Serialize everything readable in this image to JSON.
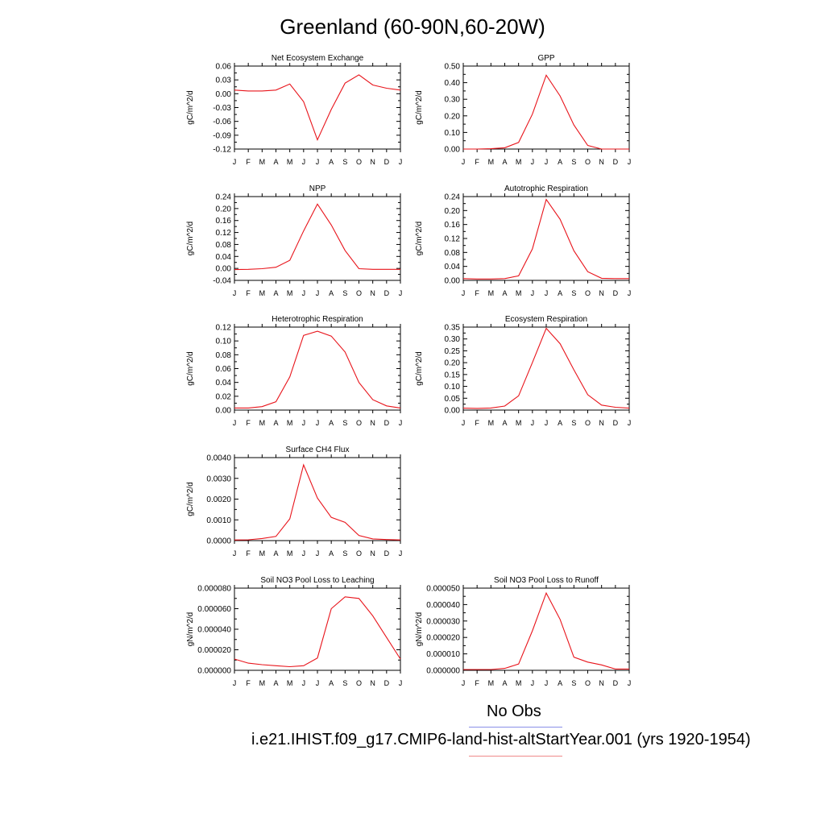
{
  "title": "Greenland (60-90N,60-20W)",
  "months": [
    "J",
    "F",
    "M",
    "A",
    "M",
    "J",
    "J",
    "A",
    "S",
    "O",
    "N",
    "D",
    "J"
  ],
  "line_color": "#e8141b",
  "legend": {
    "obs_label": "No Obs",
    "obs_color": "#8a8fe8",
    "model_label": "i.e21.IHIST.f09_g17.CMIP6-land-hist-altStartYear.001 (yrs 1920-1954)",
    "model_color": "#f08a8a"
  },
  "chart_data": [
    {
      "type": "line",
      "title": "Net Ecosystem Exchange",
      "ylabel": "gC/m^2/d",
      "ylim": [
        -0.12,
        0.06
      ],
      "yticks": [
        "-0.12",
        "-0.09",
        "-0.06",
        "-0.03",
        "0.00",
        "0.03",
        "0.06"
      ],
      "x": [
        "J",
        "F",
        "M",
        "A",
        "M",
        "J",
        "J",
        "A",
        "S",
        "O",
        "N",
        "D",
        "J"
      ],
      "values": [
        0.008,
        0.006,
        0.006,
        0.008,
        0.021,
        -0.017,
        -0.1,
        -0.034,
        0.023,
        0.041,
        0.019,
        0.012,
        0.008
      ]
    },
    {
      "type": "line",
      "title": "GPP",
      "ylabel": "gC/m^2/d",
      "ylim": [
        0.0,
        0.5
      ],
      "yticks": [
        "0.00",
        "0.10",
        "0.20",
        "0.30",
        "0.40",
        "0.50"
      ],
      "x": [
        "J",
        "F",
        "M",
        "A",
        "M",
        "J",
        "J",
        "A",
        "S",
        "O",
        "N",
        "D",
        "J"
      ],
      "values": [
        0.0,
        0.0,
        0.002,
        0.008,
        0.04,
        0.21,
        0.445,
        0.32,
        0.145,
        0.022,
        0.0,
        0.0,
        0.0
      ]
    },
    {
      "type": "line",
      "title": "NPP",
      "ylabel": "gC/m^2/d",
      "ylim": [
        -0.04,
        0.24
      ],
      "yticks": [
        "-0.04",
        "0.00",
        "0.04",
        "0.08",
        "0.12",
        "0.16",
        "0.20",
        "0.24"
      ],
      "x": [
        "J",
        "F",
        "M",
        "A",
        "M",
        "J",
        "J",
        "A",
        "S",
        "O",
        "N",
        "D",
        "J"
      ],
      "values": [
        -0.004,
        -0.003,
        -0.001,
        0.004,
        0.027,
        0.125,
        0.215,
        0.145,
        0.06,
        -0.001,
        -0.003,
        -0.003,
        -0.003
      ]
    },
    {
      "type": "line",
      "title": "Autotrophic Respiration",
      "ylabel": "gC/m^2/d",
      "ylim": [
        0.0,
        0.24
      ],
      "yticks": [
        "0.00",
        "0.04",
        "0.08",
        "0.12",
        "0.16",
        "0.20",
        "0.24"
      ],
      "x": [
        "J",
        "F",
        "M",
        "A",
        "M",
        "J",
        "J",
        "A",
        "S",
        "O",
        "N",
        "D",
        "J"
      ],
      "values": [
        0.005,
        0.004,
        0.004,
        0.005,
        0.013,
        0.09,
        0.232,
        0.175,
        0.085,
        0.025,
        0.006,
        0.005,
        0.005
      ]
    },
    {
      "type": "line",
      "title": "Heterotrophic Respiration",
      "ylabel": "gC/m^2/d",
      "ylim": [
        0.0,
        0.12
      ],
      "yticks": [
        "0.00",
        "0.02",
        "0.04",
        "0.06",
        "0.08",
        "0.10",
        "0.12"
      ],
      "x": [
        "J",
        "F",
        "M",
        "A",
        "M",
        "J",
        "J",
        "A",
        "S",
        "O",
        "N",
        "D",
        "J"
      ],
      "values": [
        0.003,
        0.003,
        0.005,
        0.012,
        0.048,
        0.108,
        0.114,
        0.107,
        0.084,
        0.04,
        0.015,
        0.006,
        0.003
      ]
    },
    {
      "type": "line",
      "title": "Ecosystem Respiration",
      "ylabel": "gC/m^2/d",
      "ylim": [
        0.0,
        0.35
      ],
      "yticks": [
        "0.00",
        "0.05",
        "0.10",
        "0.15",
        "0.20",
        "0.25",
        "0.30",
        "0.35"
      ],
      "x": [
        "J",
        "F",
        "M",
        "A",
        "M",
        "J",
        "J",
        "A",
        "S",
        "O",
        "N",
        "D",
        "J"
      ],
      "values": [
        0.008,
        0.007,
        0.009,
        0.017,
        0.06,
        0.2,
        0.345,
        0.28,
        0.17,
        0.065,
        0.021,
        0.012,
        0.008
      ]
    },
    {
      "type": "line",
      "title": "Surface CH4 Flux",
      "ylabel": "gC/m^2/d",
      "ylim": [
        0.0,
        0.004
      ],
      "yticks": [
        "0.0000",
        "0.0010",
        "0.0020",
        "0.0030",
        "0.0040"
      ],
      "x": [
        "J",
        "F",
        "M",
        "A",
        "M",
        "J",
        "J",
        "A",
        "S",
        "O",
        "N",
        "D",
        "J"
      ],
      "values": [
        3e-05,
        4e-05,
        0.0001,
        0.0002,
        0.00105,
        0.00365,
        0.00205,
        0.00112,
        0.00088,
        0.00025,
        8e-05,
        5e-05,
        3e-05
      ]
    },
    {
      "type": "line",
      "title": "Soil NO3 Pool Loss to Leaching",
      "ylabel": "gN/m^2/d",
      "ylim": [
        0.0,
        8e-05
      ],
      "yticks": [
        "0.000000",
        "0.000020",
        "0.000040",
        "0.000060",
        "0.000080"
      ],
      "x": [
        "J",
        "F",
        "M",
        "A",
        "M",
        "J",
        "J",
        "A",
        "S",
        "O",
        "N",
        "D",
        "J"
      ],
      "values": [
        1.1e-05,
        7e-06,
        5.5e-06,
        4.5e-06,
        3.5e-06,
        4.5e-06,
        1.2e-05,
        6e-05,
        7.15e-05,
        7e-05,
        5.3e-05,
        3.2e-05,
        1.1e-05
      ]
    },
    {
      "type": "line",
      "title": "Soil NO3 Pool Loss to Runoff",
      "ylabel": "gN/m^2/d",
      "ylim": [
        0.0,
        5e-05
      ],
      "yticks": [
        "0.000000",
        "0.000010",
        "0.000020",
        "0.000030",
        "0.000040",
        "0.000050"
      ],
      "x": [
        "J",
        "F",
        "M",
        "A",
        "M",
        "J",
        "J",
        "A",
        "S",
        "O",
        "N",
        "D",
        "J"
      ],
      "values": [
        5e-07,
        5e-07,
        5e-07,
        1.2e-06,
        3.8e-06,
        2.4e-05,
        4.7e-05,
        3.1e-05,
        8e-06,
        5e-06,
        3.3e-06,
        8e-07,
        8e-07
      ]
    }
  ]
}
